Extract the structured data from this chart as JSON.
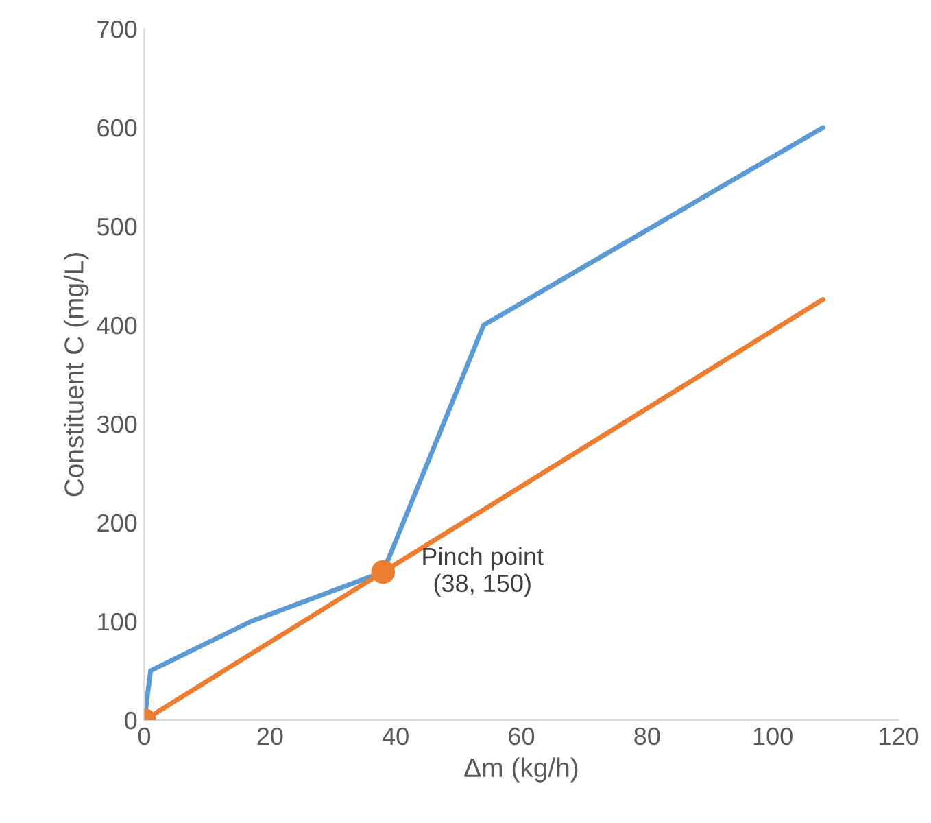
{
  "chart_data": {
    "type": "line",
    "xlabel": "Δm (kg/h)",
    "ylabel": "Constituent C (mg/L)",
    "xlim": [
      0,
      120
    ],
    "xticks": [
      0,
      20,
      40,
      60,
      80,
      100,
      120
    ],
    "ylim": [
      0,
      700
    ],
    "yticks": [
      0,
      100,
      200,
      300,
      400,
      500,
      600,
      700
    ],
    "grid": false,
    "legend": false,
    "series": [
      {
        "color": "#5b9bd5",
        "x": [
          0,
          1,
          17,
          38,
          54,
          108
        ],
        "values": [
          0,
          50,
          100,
          150,
          400,
          600
        ]
      },
      {
        "color": "#ed7d31",
        "x": [
          0,
          38,
          108
        ],
        "values": [
          0,
          150,
          426
        ]
      },
      {
        "type": "scatter",
        "color": "#ed7d31",
        "marker": "circle",
        "x": [
          0,
          38
        ],
        "values": [
          0,
          150
        ]
      }
    ],
    "annotations": [
      {
        "text": "Pinch point\n(38, 150)",
        "x": 38,
        "y": 150
      }
    ]
  }
}
